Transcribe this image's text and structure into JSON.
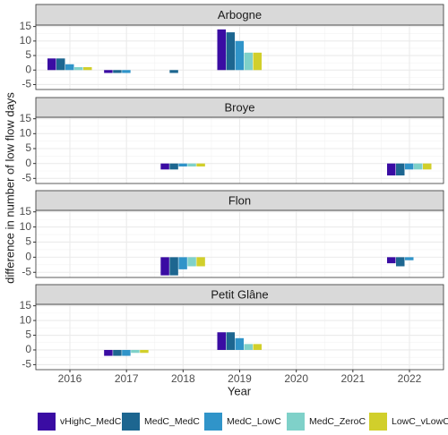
{
  "chart_data": {
    "type": "bar",
    "xlabel": "Year",
    "ylabel": "difference in number of low flow days",
    "categories": [
      "2016",
      "2017",
      "2018",
      "2019",
      "2020",
      "2021",
      "2022"
    ],
    "series": [
      {
        "name": "vHighC_MedC",
        "color": "#3a0ca3"
      },
      {
        "name": "MedC_MedC",
        "color": "#1d6690"
      },
      {
        "name": "MedC_LowC",
        "color": "#3094c9"
      },
      {
        "name": "MedC_ZeroC",
        "color": "#7fd1c9"
      },
      {
        "name": "LowC_vLowC",
        "color": "#d1cf2b"
      }
    ],
    "ylim": [
      -6.7,
      15.5
    ],
    "yticks": [
      -5,
      0,
      5,
      10,
      15
    ],
    "grid": true,
    "facets": [
      {
        "title": "Arbogne",
        "series": [
          {
            "values": [
              4,
              -1,
              0,
              14,
              0,
              0,
              0
            ]
          },
          {
            "values": [
              4,
              -1,
              -1,
              13,
              0,
              0,
              0
            ]
          },
          {
            "values": [
              2,
              -1,
              0,
              10,
              0,
              0,
              0
            ]
          },
          {
            "values": [
              1,
              0,
              0,
              6,
              0,
              0,
              0
            ]
          },
          {
            "values": [
              1,
              0,
              0,
              6,
              0,
              0,
              0
            ]
          }
        ]
      },
      {
        "title": "Broye",
        "series": [
          {
            "values": [
              0,
              0,
              -2,
              0,
              0,
              0,
              -4
            ]
          },
          {
            "values": [
              0,
              0,
              -2,
              0,
              0,
              0,
              -4
            ]
          },
          {
            "values": [
              0,
              0,
              -1,
              0,
              0,
              0,
              -2
            ]
          },
          {
            "values": [
              0,
              0,
              -1,
              0,
              0,
              0,
              -2
            ]
          },
          {
            "values": [
              0,
              0,
              -1,
              0,
              0,
              0,
              -2
            ]
          }
        ]
      },
      {
        "title": "Flon",
        "series": [
          {
            "values": [
              0,
              0,
              -6,
              0,
              0,
              0,
              -2
            ]
          },
          {
            "values": [
              0,
              0,
              -6,
              0,
              0,
              0,
              -3
            ]
          },
          {
            "values": [
              0,
              0,
              -4,
              0,
              0,
              0,
              -1
            ]
          },
          {
            "values": [
              0,
              0,
              -3,
              0,
              0,
              0,
              0
            ]
          },
          {
            "values": [
              0,
              0,
              -3,
              0,
              0,
              0,
              0
            ]
          }
        ]
      },
      {
        "title": "Petit Glâne",
        "series": [
          {
            "values": [
              0,
              -2,
              0,
              6,
              0,
              0,
              0
            ]
          },
          {
            "values": [
              0,
              -2,
              0,
              6,
              0,
              0,
              0
            ]
          },
          {
            "values": [
              0,
              -2,
              0,
              4,
              0,
              0,
              0
            ]
          },
          {
            "values": [
              0,
              -1,
              0,
              2,
              0,
              0,
              0
            ]
          },
          {
            "values": [
              0,
              -1,
              0,
              2,
              0,
              0,
              0
            ]
          }
        ]
      }
    ]
  }
}
